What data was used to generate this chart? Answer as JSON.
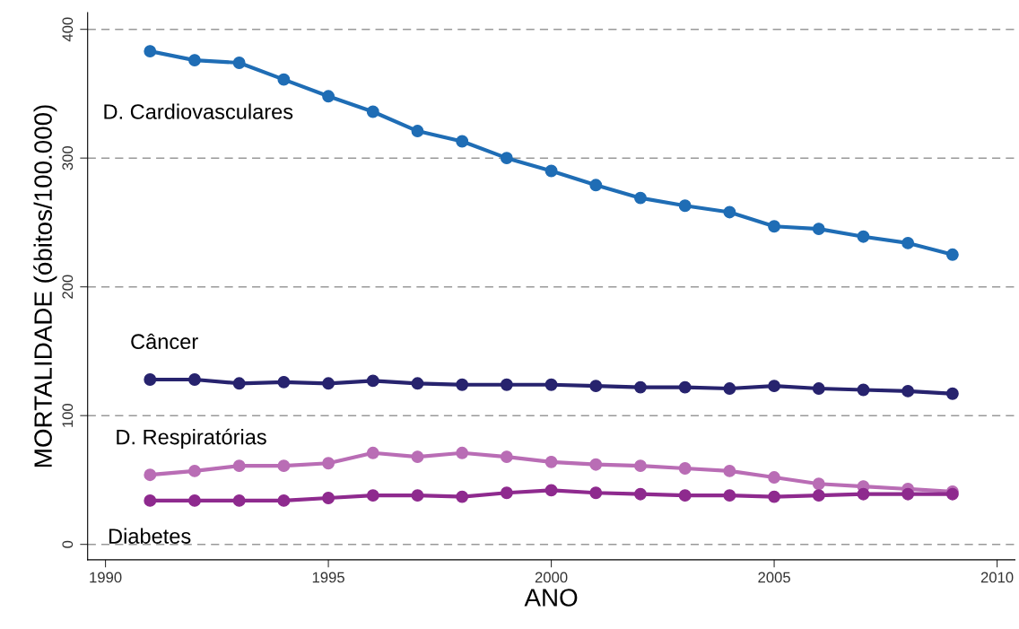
{
  "chart_data": {
    "type": "line",
    "xlabel": "ANO",
    "ylabel": "MORTALIDADE (óbitos/100.000)",
    "x": [
      1991,
      1992,
      1993,
      1994,
      1995,
      1996,
      1997,
      1998,
      1999,
      2000,
      2001,
      2002,
      2003,
      2004,
      2005,
      2006,
      2007,
      2008,
      2009
    ],
    "series": [
      {
        "name": "D. Cardiovasculares",
        "color": "#1f6db5",
        "values": [
          383,
          376,
          374,
          361,
          348,
          336,
          321,
          313,
          300,
          290,
          279,
          269,
          263,
          258,
          247,
          245,
          239,
          234,
          225
        ]
      },
      {
        "name": "Câncer",
        "color": "#27236e",
        "values": [
          128,
          128,
          125,
          126,
          125,
          127,
          125,
          124,
          124,
          124,
          123,
          122,
          122,
          121,
          123,
          121,
          120,
          119,
          117
        ]
      },
      {
        "name": "D. Respiratórias",
        "color": "#b96db5",
        "values": [
          54,
          57,
          61,
          61,
          63,
          71,
          68,
          71,
          68,
          64,
          62,
          61,
          59,
          57,
          52,
          47,
          45,
          43,
          41
        ]
      },
      {
        "name": "Diabetes",
        "color": "#8e2a8e",
        "values": [
          34,
          34,
          34,
          34,
          36,
          38,
          38,
          37,
          40,
          42,
          40,
          39,
          38,
          38,
          37,
          38,
          39,
          39,
          39
        ]
      }
    ],
    "xlim": [
      1989.6,
      2010.4
    ],
    "xticks": [
      1990,
      1995,
      2000,
      2005,
      2010
    ],
    "ylim": [
      -12,
      413
    ],
    "yticks": [
      0,
      100,
      200,
      300,
      400
    ],
    "grid": "y",
    "legend": false,
    "marker": "circle",
    "line_style": "solid"
  }
}
